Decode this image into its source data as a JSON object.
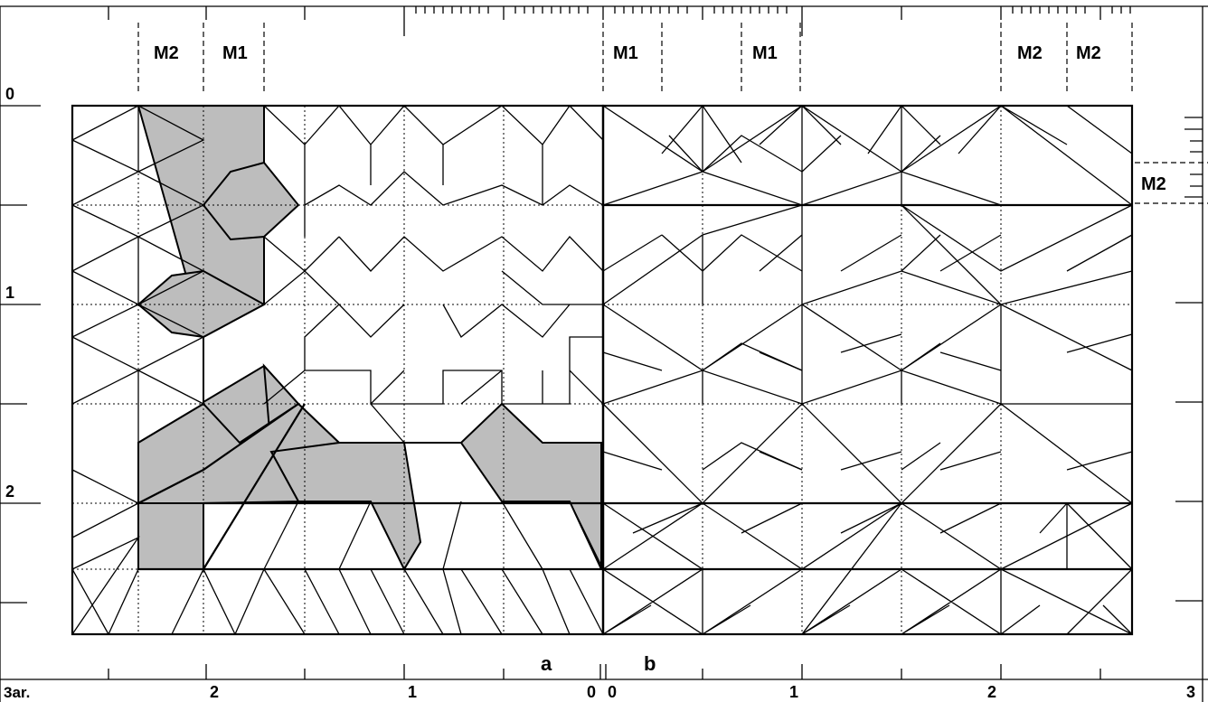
{
  "figure": {
    "top_module_labels": [
      "M2",
      "M1",
      "M1",
      "M1",
      "M2",
      "M2"
    ],
    "right_module_label": "M2",
    "left_axis_ticks": [
      "0",
      "1",
      "2"
    ],
    "bottom_unit": "3ar.",
    "bottom_ticks_a": [
      "2",
      "1",
      "0"
    ],
    "bottom_ticks_b": [
      "0",
      "1",
      "2",
      "3"
    ],
    "panel_a_label": "a",
    "panel_b_label": "b"
  }
}
